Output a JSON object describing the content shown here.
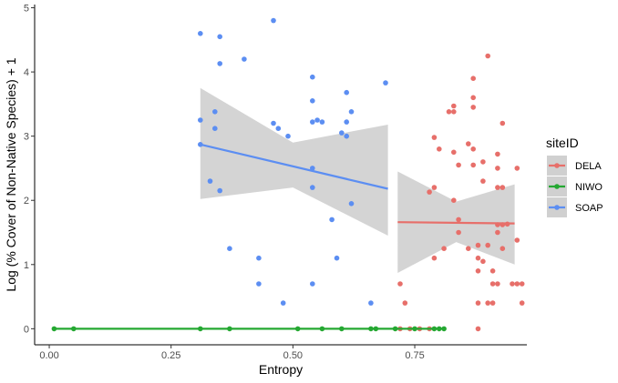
{
  "chart_data": {
    "type": "scatter",
    "xlabel": "Entropy",
    "ylabel": "Log (% Cover of Non-Native Species) + 1",
    "xlim": [
      -0.03,
      0.98
    ],
    "ylim": [
      -0.25,
      5.05
    ],
    "x_ticks": [
      0.0,
      0.25,
      0.5,
      0.75
    ],
    "x_tick_labels": [
      "0.00",
      "0.25",
      "0.50",
      "0.75"
    ],
    "y_ticks": [
      0,
      1,
      2,
      3,
      4,
      5
    ],
    "y_tick_labels": [
      "0",
      "1",
      "2",
      "3",
      "4",
      "5"
    ],
    "grid": false,
    "legend": {
      "title": "siteID",
      "placement": "right",
      "entries": [
        "DELA",
        "NIWO",
        "SOAP"
      ]
    },
    "series": [
      {
        "name": "DELA",
        "color": "#e76f6a",
        "points": [
          [
            0.72,
            0.7
          ],
          [
            0.73,
            0.4
          ],
          [
            0.72,
            0.0
          ],
          [
            0.74,
            0.0
          ],
          [
            0.76,
            0.0
          ],
          [
            0.78,
            0.0
          ],
          [
            0.78,
            2.13
          ],
          [
            0.79,
            2.2
          ],
          [
            0.79,
            2.98
          ],
          [
            0.8,
            2.8
          ],
          [
            0.81,
            1.25
          ],
          [
            0.79,
            1.1
          ],
          [
            0.82,
            3.38
          ],
          [
            0.83,
            3.47
          ],
          [
            0.83,
            3.38
          ],
          [
            0.83,
            2.75
          ],
          [
            0.83,
            2.0
          ],
          [
            0.84,
            2.55
          ],
          [
            0.84,
            1.7
          ],
          [
            0.84,
            1.5
          ],
          [
            0.86,
            2.88
          ],
          [
            0.86,
            1.25
          ],
          [
            0.87,
            3.9
          ],
          [
            0.87,
            3.6
          ],
          [
            0.87,
            3.45
          ],
          [
            0.87,
            2.8
          ],
          [
            0.87,
            2.55
          ],
          [
            0.88,
            1.3
          ],
          [
            0.88,
            1.1
          ],
          [
            0.88,
            0.9
          ],
          [
            0.89,
            2.6
          ],
          [
            0.89,
            2.3
          ],
          [
            0.88,
            0.4
          ],
          [
            0.88,
            0.0
          ],
          [
            0.9,
            4.25
          ],
          [
            0.9,
            1.3
          ],
          [
            0.91,
            0.9
          ],
          [
            0.91,
            0.7
          ],
          [
            0.92,
            2.72
          ],
          [
            0.92,
            2.5
          ],
          [
            0.92,
            2.2
          ],
          [
            0.93,
            2.2
          ],
          [
            0.92,
            1.62
          ],
          [
            0.92,
            1.5
          ],
          [
            0.93,
            1.62
          ],
          [
            0.93,
            1.25
          ],
          [
            0.92,
            0.7
          ],
          [
            0.91,
            0.4
          ],
          [
            0.93,
            3.2
          ],
          [
            0.94,
            1.63
          ],
          [
            0.95,
            0.7
          ],
          [
            0.96,
            2.5
          ],
          [
            0.96,
            1.38
          ],
          [
            0.96,
            0.7
          ],
          [
            0.97,
            0.7
          ],
          [
            0.97,
            0.4
          ],
          [
            0.9,
            0.4
          ],
          [
            0.89,
            1.05
          ]
        ],
        "trend": {
          "x0": 0.715,
          "y0": 1.66,
          "x1": 0.955,
          "y1": 1.64
        },
        "band": {
          "x": [
            0.715,
            0.835,
            0.955
          ],
          "lower": [
            0.87,
            1.35,
            1.0
          ],
          "upper": [
            2.45,
            1.98,
            2.25
          ]
        }
      },
      {
        "name": "NIWO",
        "color": "#25a832",
        "points": [
          [
            0.01,
            0.0
          ],
          [
            0.05,
            0.0
          ],
          [
            0.31,
            0.0
          ],
          [
            0.37,
            0.0
          ],
          [
            0.51,
            0.0
          ],
          [
            0.56,
            0.0
          ],
          [
            0.6,
            0.0
          ],
          [
            0.66,
            0.0
          ],
          [
            0.67,
            0.0
          ],
          [
            0.71,
            0.0
          ],
          [
            0.75,
            0.0
          ],
          [
            0.79,
            0.0
          ],
          [
            0.8,
            0.0
          ],
          [
            0.81,
            0.0
          ]
        ],
        "trend": {
          "x0": 0.01,
          "y0": 0.0,
          "x1": 0.81,
          "y1": 0.0
        },
        "band": {
          "x": [
            0.01,
            0.81
          ],
          "lower": [
            0.0,
            0.0
          ],
          "upper": [
            0.0,
            0.0
          ]
        }
      },
      {
        "name": "SOAP",
        "color": "#5c8ef2",
        "points": [
          [
            0.31,
            4.6
          ],
          [
            0.31,
            3.25
          ],
          [
            0.31,
            2.87
          ],
          [
            0.33,
            2.3
          ],
          [
            0.34,
            3.38
          ],
          [
            0.34,
            3.12
          ],
          [
            0.35,
            4.55
          ],
          [
            0.35,
            4.13
          ],
          [
            0.35,
            2.15
          ],
          [
            0.37,
            1.25
          ],
          [
            0.4,
            4.2
          ],
          [
            0.43,
            1.1
          ],
          [
            0.43,
            0.7
          ],
          [
            0.46,
            4.8
          ],
          [
            0.46,
            3.2
          ],
          [
            0.47,
            3.12
          ],
          [
            0.48,
            0.4
          ],
          [
            0.49,
            3.0
          ],
          [
            0.54,
            3.92
          ],
          [
            0.54,
            3.55
          ],
          [
            0.54,
            3.22
          ],
          [
            0.54,
            2.5
          ],
          [
            0.54,
            2.2
          ],
          [
            0.54,
            0.7
          ],
          [
            0.55,
            3.25
          ],
          [
            0.56,
            3.22
          ],
          [
            0.58,
            1.7
          ],
          [
            0.59,
            1.1
          ],
          [
            0.61,
            3.68
          ],
          [
            0.61,
            3.22
          ],
          [
            0.61,
            3.0
          ],
          [
            0.62,
            3.38
          ],
          [
            0.62,
            1.95
          ],
          [
            0.66,
            0.4
          ],
          [
            0.69,
            3.83
          ],
          [
            0.6,
            3.05
          ]
        ],
        "trend": {
          "x0": 0.31,
          "y0": 2.87,
          "x1": 0.695,
          "y1": 2.18
        },
        "band": {
          "x": [
            0.31,
            0.5,
            0.695
          ],
          "lower": [
            2.02,
            2.2,
            1.45
          ],
          "upper": [
            3.75,
            2.9,
            3.18
          ]
        }
      }
    ]
  }
}
